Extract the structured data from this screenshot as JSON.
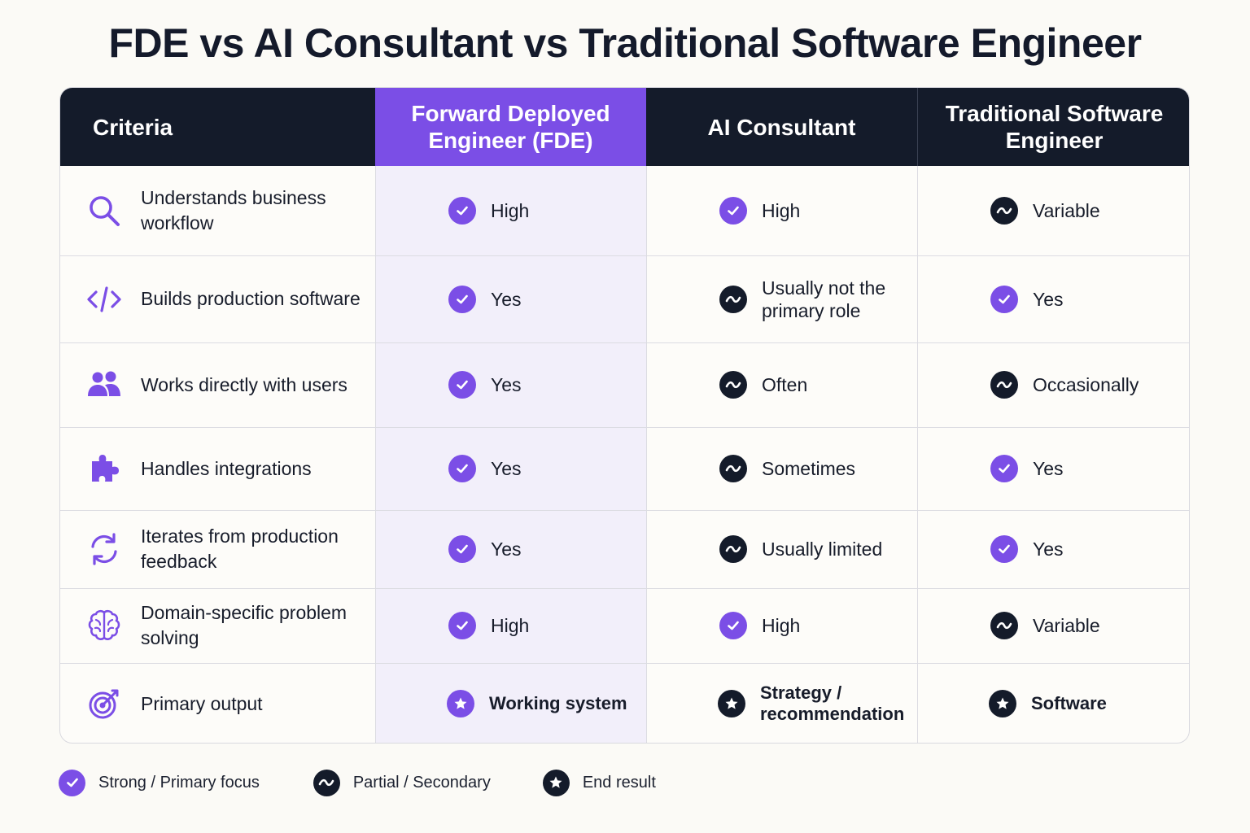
{
  "title": "FDE vs AI Consultant vs Traditional Software Engineer",
  "colors": {
    "accent": "#7b4ee6",
    "dark": "#141b2a",
    "fde_column_bg": "#f2effa"
  },
  "headers": {
    "criteria": "Criteria",
    "fde": "Forward Deployed Engineer (FDE)",
    "consultant": "AI Consultant",
    "traditional": "Traditional Software Engineer"
  },
  "rows": [
    {
      "icon": "search-icon",
      "criteria": "Understands business workflow",
      "fde": {
        "status": "check",
        "text": "High"
      },
      "consultant": {
        "status": "check",
        "text": "High"
      },
      "traditional": {
        "status": "partial",
        "text": "Variable"
      }
    },
    {
      "icon": "code-icon",
      "criteria": "Builds production software",
      "fde": {
        "status": "check",
        "text": "Yes"
      },
      "consultant": {
        "status": "partial",
        "text": "Usually not the primary role"
      },
      "traditional": {
        "status": "check",
        "text": "Yes"
      }
    },
    {
      "icon": "users-icon",
      "criteria": "Works directly with users",
      "fde": {
        "status": "check",
        "text": "Yes"
      },
      "consultant": {
        "status": "partial",
        "text": "Often"
      },
      "traditional": {
        "status": "partial",
        "text": "Occasionally"
      }
    },
    {
      "icon": "puzzle-icon",
      "criteria": "Handles integrations",
      "fde": {
        "status": "check",
        "text": "Yes"
      },
      "consultant": {
        "status": "partial",
        "text": "Sometimes"
      },
      "traditional": {
        "status": "check",
        "text": "Yes"
      }
    },
    {
      "icon": "refresh-icon",
      "criteria": "Iterates from production feedback",
      "fde": {
        "status": "check",
        "text": "Yes"
      },
      "consultant": {
        "status": "partial",
        "text": "Usually limited"
      },
      "traditional": {
        "status": "check",
        "text": "Yes"
      }
    },
    {
      "icon": "brain-icon",
      "criteria": "Domain-specific problem solving",
      "fde": {
        "status": "check",
        "text": "High"
      },
      "consultant": {
        "status": "check",
        "text": "High"
      },
      "traditional": {
        "status": "partial",
        "text": "Variable"
      }
    },
    {
      "icon": "target-icon",
      "criteria": "Primary output",
      "fde": {
        "status": "star",
        "text": "Working system"
      },
      "consultant": {
        "status": "star",
        "text": "Strategy / recommendation"
      },
      "traditional": {
        "status": "star",
        "text": "Software"
      }
    }
  ],
  "legend": {
    "strong": "Strong / Primary focus",
    "partial": "Partial / Secondary",
    "end_result": "End result"
  }
}
